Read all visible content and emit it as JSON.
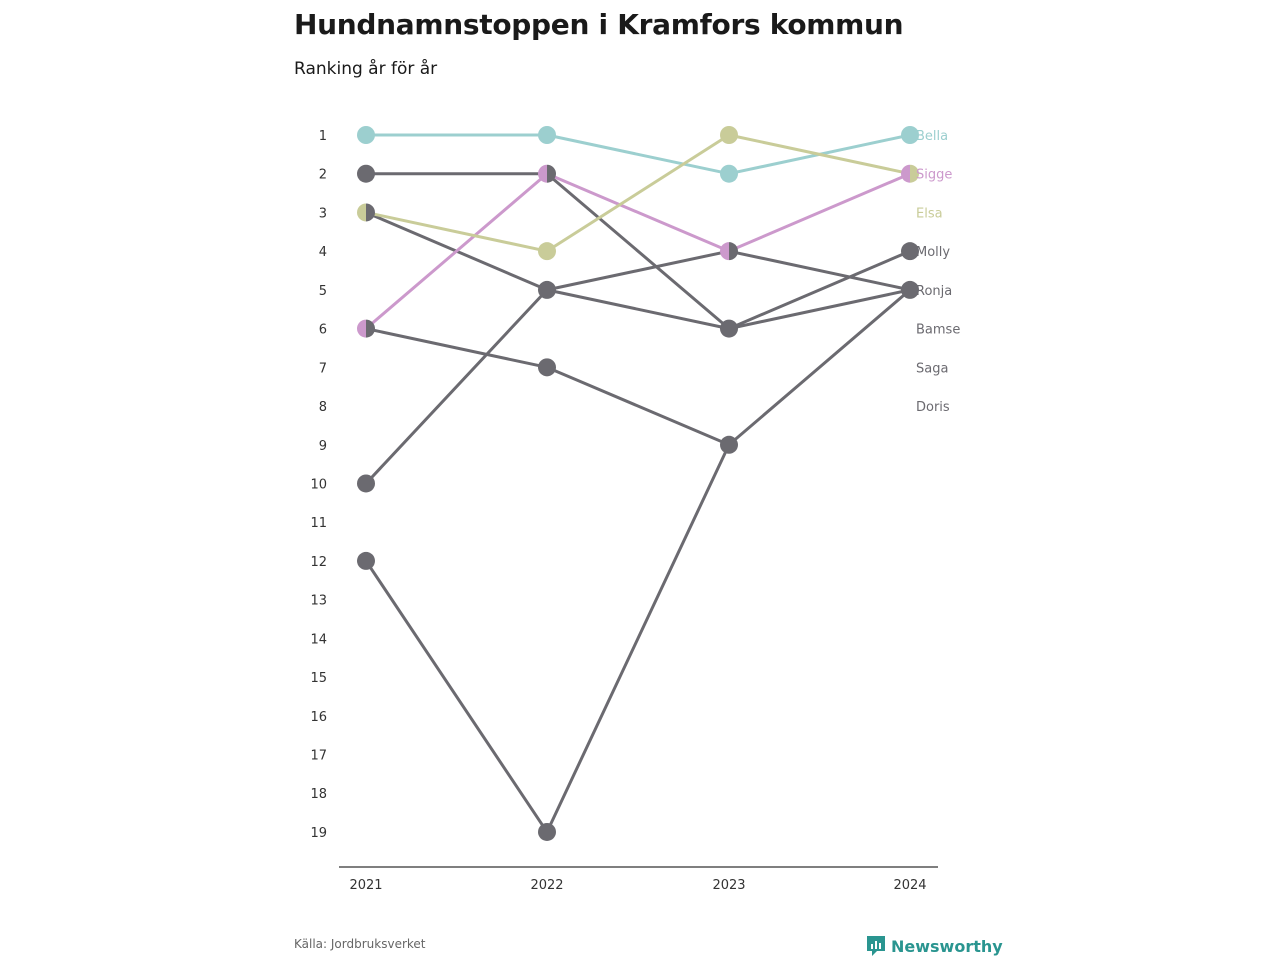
{
  "header": {
    "title": "Hundnamnstoppen i Kramfors kommun",
    "subtitle": "Ranking år för år"
  },
  "footer": {
    "source": "Källa: Jordbruksverket",
    "brand": "Newsworthy"
  },
  "colors": {
    "bella": "#9ccfcf",
    "sigge": "#cc99cc",
    "elsa": "#c9cc99",
    "grey": "#6b6a70",
    "axis": "#333333",
    "brand": "#2a9590"
  },
  "chart_data": {
    "type": "line",
    "title": "Hundnamnstoppen i Kramfors kommun",
    "subtitle": "Ranking år för år",
    "x": [
      "2021",
      "2022",
      "2023",
      "2024"
    ],
    "y_ticks": [
      "1",
      "2",
      "3",
      "4",
      "5",
      "6",
      "7",
      "8",
      "9",
      "10",
      "11",
      "12",
      "13",
      "14",
      "15",
      "16",
      "17",
      "18",
      "19"
    ],
    "ylim": [
      1,
      19
    ],
    "y_reversed": true,
    "grid": false,
    "legend": "right-end labels",
    "series": [
      {
        "name": "Bella",
        "color": "#9ccfcf",
        "values": [
          1,
          1,
          2,
          1
        ]
      },
      {
        "name": "Sigge",
        "color": "#cc99cc",
        "values": [
          6,
          2,
          4,
          2
        ]
      },
      {
        "name": "Elsa",
        "color": "#c9cc99",
        "values": [
          3,
          4,
          1,
          2
        ]
      },
      {
        "name": "Molly",
        "color": "#6b6a70",
        "values": [
          10,
          5,
          4,
          5
        ]
      },
      {
        "name": "Ronja",
        "color": "#6b6a70",
        "values": [
          12,
          19,
          9,
          5
        ]
      },
      {
        "name": "Bamse",
        "color": "#6b6a70",
        "values": [
          3,
          5,
          6,
          5
        ]
      },
      {
        "name": "Saga",
        "color": "#6b6a70",
        "values": [
          6,
          7,
          9,
          null
        ]
      },
      {
        "name": "Doris",
        "color": "#6b6a70",
        "values": [
          2,
          2,
          6,
          4
        ]
      }
    ]
  }
}
